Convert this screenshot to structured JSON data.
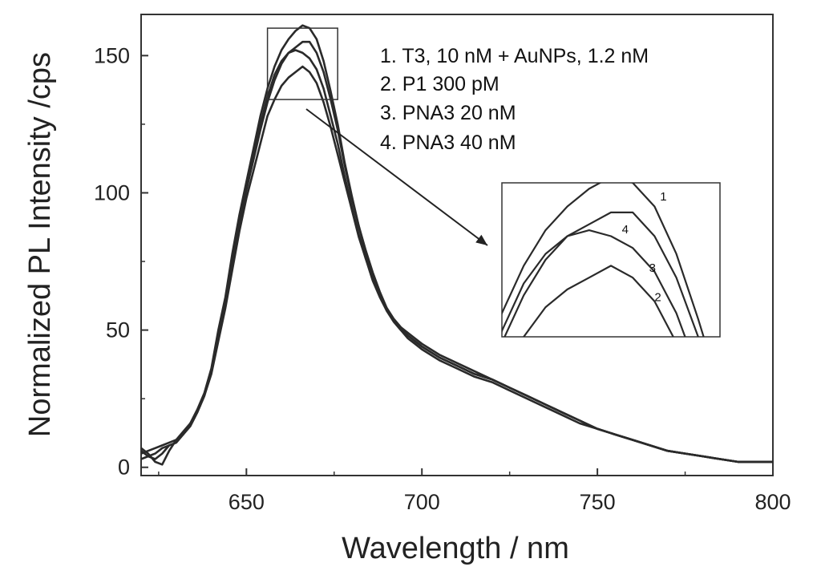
{
  "chart_data": {
    "type": "line",
    "title": "",
    "xlabel": "Wavelength / nm",
    "ylabel": "Normalized PL Intensity /cps",
    "xlim": [
      620,
      800
    ],
    "ylim": [
      -3,
      165
    ],
    "xticks": [
      650,
      700,
      750,
      800
    ],
    "yticks": [
      0,
      50,
      100,
      150
    ],
    "grid": false,
    "legend_position": "top-right",
    "legend": [
      "1. T3, 10 nM + AuNPs, 1.2 nM",
      "2. P1 300 pM",
      "3. PNA3 20 nM",
      "4. PNA3 40 nM"
    ],
    "series": [
      {
        "name": "1",
        "x": [
          620,
          622,
          624,
          626,
          628,
          630,
          632,
          634,
          636,
          638,
          640,
          642,
          644,
          646,
          648,
          650,
          652,
          654,
          656,
          658,
          660,
          662,
          664,
          666,
          668,
          670,
          672,
          674,
          676,
          678,
          680,
          682,
          684,
          686,
          688,
          690,
          692,
          694,
          696,
          698,
          700,
          705,
          710,
          715,
          720,
          725,
          730,
          735,
          740,
          745,
          750,
          755,
          760,
          765,
          770,
          775,
          780,
          785,
          790,
          795,
          800
        ],
        "y": [
          6,
          4,
          3,
          5,
          8,
          9,
          12,
          16,
          21,
          27,
          36,
          50,
          62,
          78,
          92,
          104,
          116,
          128,
          138,
          146,
          152,
          156,
          159,
          161,
          160,
          156,
          148,
          137,
          125,
          111,
          99,
          88,
          78,
          70,
          63,
          58,
          54,
          51,
          49,
          47,
          45,
          41,
          38,
          35,
          32,
          29,
          26,
          23,
          20,
          17,
          14,
          12,
          10,
          8,
          6,
          5,
          4,
          3,
          2,
          2,
          2
        ]
      },
      {
        "name": "2",
        "x": [
          620,
          622,
          624,
          626,
          628,
          630,
          632,
          634,
          636,
          638,
          640,
          642,
          644,
          646,
          648,
          650,
          652,
          654,
          656,
          658,
          660,
          662,
          664,
          666,
          668,
          670,
          672,
          674,
          676,
          678,
          680,
          682,
          684,
          686,
          688,
          690,
          692,
          694,
          696,
          698,
          700,
          705,
          710,
          715,
          720,
          725,
          730,
          735,
          740,
          745,
          750,
          755,
          760,
          765,
          770,
          775,
          780,
          785,
          790,
          795,
          800
        ],
        "y": [
          5,
          6,
          7,
          8,
          9,
          10,
          13,
          16,
          20,
          26,
          34,
          46,
          58,
          72,
          86,
          98,
          108,
          118,
          128,
          134,
          139,
          142,
          144,
          146,
          144,
          140,
          133,
          124,
          114,
          104,
          94,
          84,
          76,
          69,
          63,
          57,
          53,
          50,
          47,
          45,
          43,
          39,
          36,
          33,
          31,
          28,
          25,
          22,
          19,
          16,
          14,
          12,
          10,
          8,
          6,
          5,
          4,
          3,
          2,
          2,
          2
        ]
      },
      {
        "name": "3",
        "x": [
          620,
          622,
          624,
          626,
          628,
          630,
          632,
          634,
          636,
          638,
          640,
          642,
          644,
          646,
          648,
          650,
          652,
          654,
          656,
          658,
          660,
          662,
          664,
          666,
          668,
          670,
          672,
          674,
          676,
          678,
          680,
          682,
          684,
          686,
          688,
          690,
          692,
          694,
          696,
          698,
          700,
          705,
          710,
          715,
          720,
          725,
          730,
          735,
          740,
          745,
          750,
          755,
          760,
          765,
          770,
          775,
          780,
          785,
          790,
          795,
          800
        ],
        "y": [
          7,
          5,
          2,
          1,
          6,
          10,
          12,
          15,
          20,
          26,
          35,
          49,
          61,
          76,
          90,
          102,
          114,
          125,
          135,
          143,
          148,
          151,
          152,
          151,
          149,
          145,
          138,
          128,
          118,
          106,
          95,
          85,
          76,
          68,
          62,
          57,
          53,
          50,
          48,
          46,
          44,
          40,
          37,
          34,
          32,
          29,
          26,
          23,
          20,
          17,
          14,
          12,
          10,
          8,
          6,
          5,
          4,
          3,
          2,
          2,
          2
        ]
      },
      {
        "name": "4",
        "x": [
          620,
          622,
          624,
          626,
          628,
          630,
          632,
          634,
          636,
          638,
          640,
          642,
          644,
          646,
          648,
          650,
          652,
          654,
          656,
          658,
          660,
          662,
          664,
          666,
          668,
          670,
          672,
          674,
          676,
          678,
          680,
          682,
          684,
          686,
          688,
          690,
          692,
          694,
          696,
          698,
          700,
          705,
          710,
          715,
          720,
          725,
          730,
          735,
          740,
          745,
          750,
          755,
          760,
          765,
          770,
          775,
          780,
          785,
          790,
          795,
          800
        ],
        "y": [
          3,
          4,
          5,
          7,
          8,
          9,
          12,
          15,
          20,
          26,
          35,
          48,
          60,
          75,
          89,
          101,
          112,
          123,
          133,
          141,
          147,
          151,
          153,
          155,
          155,
          151,
          144,
          134,
          123,
          110,
          98,
          88,
          79,
          71,
          64,
          58,
          54,
          51,
          48,
          46,
          44,
          40,
          37,
          34,
          32,
          29,
          26,
          23,
          20,
          17,
          14,
          12,
          10,
          8,
          6,
          5,
          4,
          3,
          2,
          2,
          2
        ]
      }
    ],
    "inset": {
      "description_labels": [
        "1",
        "4",
        "3",
        "2"
      ],
      "zoom_xlim": [
        656,
        676
      ],
      "zoom_ylim": [
        134,
        160
      ]
    }
  }
}
